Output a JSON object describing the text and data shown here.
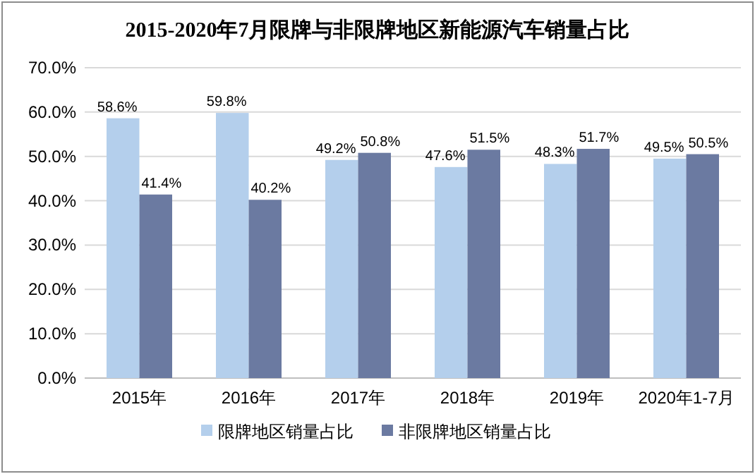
{
  "chart_data": {
    "type": "bar",
    "title": "2015-2020年7月限牌与非限牌地区新能源汽车销量占比",
    "categories": [
      "2015年",
      "2016年",
      "2017年",
      "2018年",
      "2019年",
      "2020年1-7月"
    ],
    "series": [
      {
        "name": "限牌地区销量占比",
        "color": "#b4cfec",
        "values": [
          58.6,
          59.8,
          49.2,
          47.6,
          48.3,
          49.5
        ],
        "value_labels": [
          "58.6%",
          "59.8%",
          "49.2%",
          "47.6%",
          "48.3%",
          "49.5%"
        ]
      },
      {
        "name": "非限牌地区销量占比",
        "color": "#6b7aa1",
        "values": [
          41.4,
          40.2,
          50.8,
          51.5,
          51.7,
          50.5
        ],
        "value_labels": [
          "41.4%",
          "40.2%",
          "50.8%",
          "51.5%",
          "51.7%",
          "50.5%"
        ]
      }
    ],
    "ylim": [
      0,
      70
    ],
    "yticks": [
      {
        "value": 0,
        "label": "0.0%"
      },
      {
        "value": 10,
        "label": "10.0%"
      },
      {
        "value": 20,
        "label": "20.0%"
      },
      {
        "value": 30,
        "label": "30.0%"
      },
      {
        "value": 40,
        "label": "40.0%"
      },
      {
        "value": 50,
        "label": "50.0%"
      },
      {
        "value": 60,
        "label": "60.0%"
      },
      {
        "value": 70,
        "label": "70.0%"
      }
    ],
    "grid": "y",
    "legend": "bottom"
  }
}
